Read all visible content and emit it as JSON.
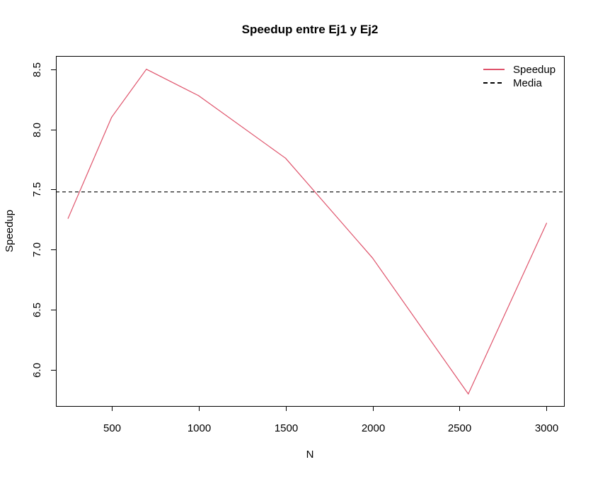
{
  "chart_data": {
    "type": "line",
    "title": "Speedup entre Ej1 y Ej2",
    "xlabel": "N",
    "ylabel": "Speedup",
    "xlim": [
      180,
      3100
    ],
    "ylim": [
      5.7,
      8.61
    ],
    "xticks": [
      500,
      1000,
      1500,
      2000,
      2500,
      3000
    ],
    "yticks": [
      6.0,
      6.5,
      7.0,
      7.5,
      8.0,
      8.5
    ],
    "xtick_labels": [
      "500",
      "1000",
      "1500",
      "2000",
      "2500",
      "3000"
    ],
    "ytick_labels": [
      "6.0",
      "6.5",
      "7.0",
      "7.5",
      "8.0",
      "8.5"
    ],
    "series": [
      {
        "name": "Speedup",
        "color": "#DF536B",
        "line_style": "solid",
        "x": [
          250,
          500,
          700,
          1000,
          1500,
          2000,
          2550,
          3000
        ],
        "y": [
          7.26,
          8.1,
          8.5,
          8.28,
          7.76,
          6.93,
          5.8,
          7.22
        ]
      }
    ],
    "hlines": [
      {
        "name": "Media",
        "color": "#000000",
        "line_style": "dashed",
        "y": 7.48
      }
    ],
    "legend": {
      "position": "top-right",
      "entries": [
        {
          "label": "Speedup",
          "color": "#DF536B",
          "line_style": "solid"
        },
        {
          "label": "Media",
          "color": "#000000",
          "line_style": "dashed"
        }
      ]
    },
    "grid": false
  }
}
